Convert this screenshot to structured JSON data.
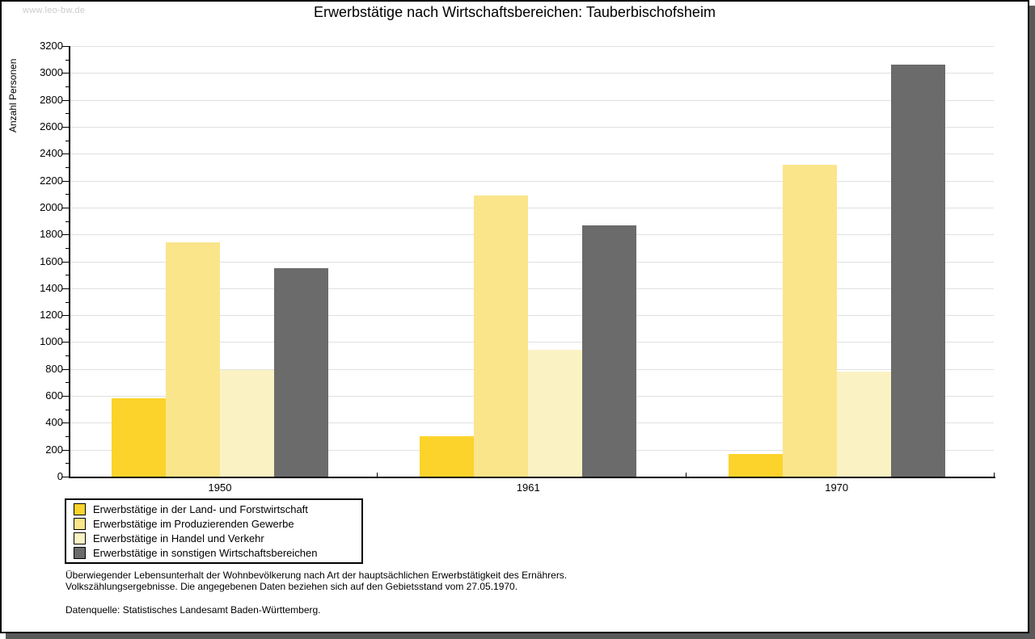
{
  "watermark": "www.leo-bw.de",
  "chart_data": {
    "type": "bar",
    "title": "Erwerbstätige nach Wirtschaftsbereichen: Tauberbischofsheim",
    "xlabel": "",
    "ylabel": "Anzahl Personen",
    "categories": [
      "1950",
      "1961",
      "1970"
    ],
    "series": [
      {
        "name": "Erwerbstätige in der Land- und Forstwirtschaft",
        "color": "#fcd32b",
        "values": [
          580,
          300,
          170
        ]
      },
      {
        "name": "Erwerbstätige im Produzierenden Gewerbe",
        "color": "#fbe58a",
        "values": [
          1740,
          2090,
          2320
        ]
      },
      {
        "name": "Erwerbstätige in Handel und Verkehr",
        "color": "#fbf2c4",
        "values": [
          790,
          940,
          780
        ]
      },
      {
        "name": "Erwerbstätige in sonstigen Wirtschaftsbereichen",
        "color": "#6b6b6b",
        "values": [
          1550,
          1870,
          3060
        ]
      }
    ],
    "ylim": [
      0,
      3200
    ],
    "ytick_step": 200,
    "ytick_minor_step": 100,
    "grid": "horizontal-major",
    "legend_position": "bottom-left"
  },
  "footnotes": {
    "line1": "Überwiegender Lebensunterhalt der Wohnbevölkerung nach Art der hauptsächlichen Erwerbstätigkeit des Ernährers.",
    "line2": "Volkszählungsergebnisse. Die angegebenen Daten beziehen sich auf den Gebietsstand vom 27.05.1970.",
    "source": "Datenquelle: Statistisches Landesamt Baden-Württemberg."
  },
  "colors": {
    "gridline": "#e0e0e0",
    "axis": "#000000",
    "shadow": "#595959",
    "watermark": "#cbcbcb",
    "background": "#ffffff"
  }
}
